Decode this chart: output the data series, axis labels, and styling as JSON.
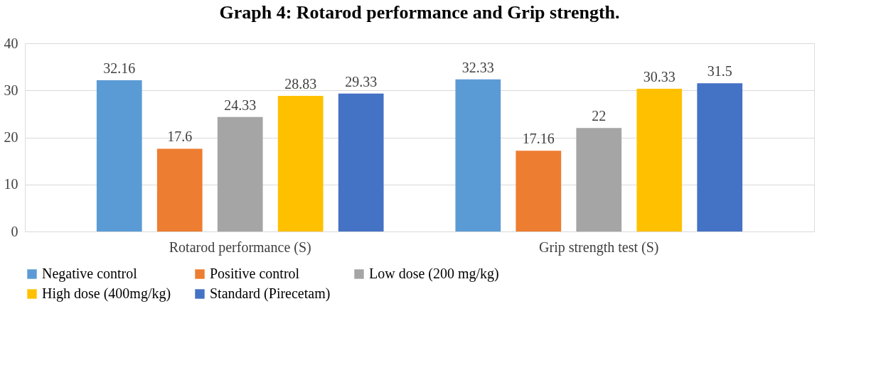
{
  "chart_data": {
    "type": "bar",
    "title": "Graph 4: Rotarod performance and Grip strength.",
    "categories": [
      "Rotarod performance (S)",
      "Grip strength test (S)"
    ],
    "series": [
      {
        "name": "Negative control",
        "color": "#5b9bd5",
        "values": [
          32.16,
          32.33
        ]
      },
      {
        "name": "Positive control",
        "color": "#ed7d31",
        "values": [
          17.6,
          17.16
        ]
      },
      {
        "name": "Low dose (200 mg/kg)",
        "color": "#a5a5a5",
        "values": [
          24.33,
          22
        ]
      },
      {
        "name": "High dose (400mg/kg)",
        "color": "#ffc000",
        "values": [
          28.83,
          30.33
        ]
      },
      {
        "name": "Standard (Pirecetam)",
        "color": "#4472c4",
        "values": [
          29.33,
          31.5
        ]
      }
    ],
    "ylim": [
      0,
      40
    ],
    "yticks": [
      0,
      10,
      20,
      30,
      40
    ],
    "grid": "y",
    "legend": "bottom",
    "data_labels": true
  }
}
